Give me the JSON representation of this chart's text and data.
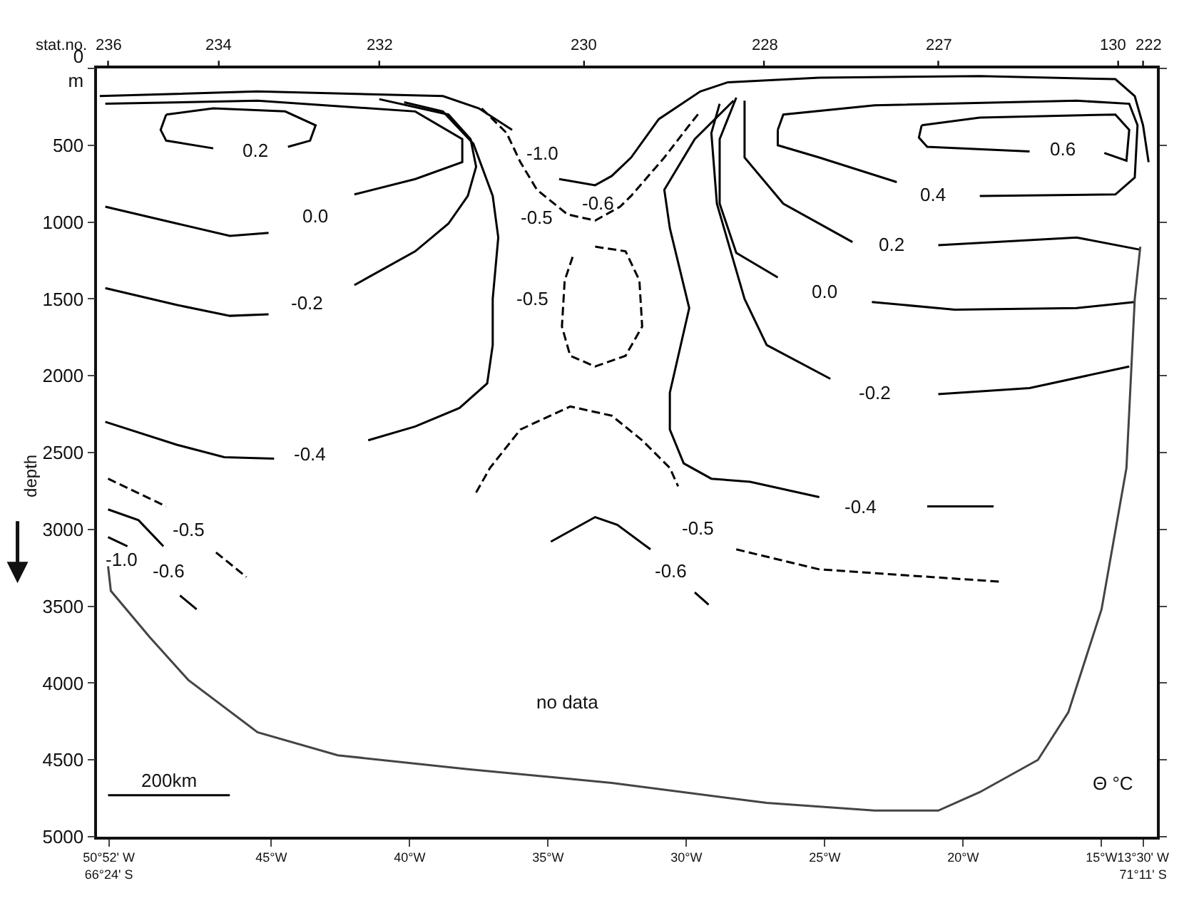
{
  "chart_data": {
    "type": "line",
    "ylabel": "depth",
    "xlim": [
      51.3,
      13.0
    ],
    "ylim": [
      5000,
      0
    ],
    "xticks": [
      {
        "value": 50.87,
        "label": "50°52' W\n66°24' S"
      },
      {
        "value": 45,
        "label": "45°W"
      },
      {
        "value": 40,
        "label": "40°W"
      },
      {
        "value": 35,
        "label": "35°W"
      },
      {
        "value": 30,
        "label": "30°W"
      },
      {
        "value": 25,
        "label": "25°W"
      },
      {
        "value": 20,
        "label": "20°W"
      },
      {
        "value": 15,
        "label": "15°W"
      },
      {
        "value": 13.5,
        "label": "13°30' W\n71°11' S"
      }
    ],
    "yticks": [
      {
        "value": 0,
        "label": "0\nm"
      },
      500,
      1000,
      1500,
      2000,
      2500,
      3000,
      3500,
      4000,
      4500,
      5000
    ],
    "series": [
      {
        "color": "#000000",
        "line_style": "solid",
        "x": [
          51.2,
          45.5,
          38.8,
          37.5,
          36.3,
          35.8,
          34.6,
          33.3,
          32.7,
          32.0,
          31.0,
          29.5,
          28.5,
          25.2,
          19.4,
          14.5,
          13.8,
          13.5,
          13.3
        ],
        "values": [
          180,
          150,
          180,
          260,
          400,
          null,
          720,
          760,
          700,
          580,
          330,
          150,
          90,
          60,
          50,
          70,
          180,
          370,
          610
        ]
      },
      {
        "color": "#000000",
        "line_style": "solid",
        "x": [
          51.0,
          48.4,
          46.5,
          45.1,
          43.7,
          42.0,
          39.8,
          38.1,
          38.1,
          39.8,
          45.5,
          51.0
        ],
        "values": [
          900,
          1010,
          1090,
          1070,
          null,
          820,
          720,
          610,
          460,
          280,
          210,
          230
        ]
      },
      {
        "color": "#000000",
        "line_style": "solid",
        "x": [
          48.8,
          47.1,
          44.5,
          43.4,
          43.6,
          44.4,
          45.8,
          47.1,
          48.8,
          49.0,
          48.8
        ],
        "values": [
          300,
          260,
          280,
          370,
          470,
          510,
          null,
          520,
          470,
          400,
          300
        ]
      },
      {
        "color": "#000000",
        "line_style": "solid",
        "x": [
          51.0,
          48.4,
          46.5,
          45.1,
          43.7,
          42.0,
          39.8,
          38.6,
          37.9,
          37.6,
          37.8,
          38.6,
          41.1
        ],
        "values": [
          1430,
          1540,
          1610,
          1600,
          null,
          1410,
          1190,
          1010,
          830,
          640,
          460,
          300,
          200
        ]
      },
      {
        "color": "#000000",
        "line_style": "solid",
        "x": [
          51.0,
          48.4,
          46.7,
          44.9,
          43.2,
          41.5,
          39.8,
          38.2,
          37.2,
          37.0,
          37.0,
          36.8,
          37.0,
          37.7,
          38.8,
          40.2
        ],
        "values": [
          2300,
          2450,
          2530,
          2540,
          null,
          2420,
          2330,
          2210,
          2050,
          1800,
          1500,
          1100,
          830,
          490,
          280,
          220
        ]
      },
      {
        "color": "#000000",
        "line_style": "dashed",
        "x": [
          37.4,
          36.5,
          36.0,
          35.4,
          34.3,
          33.3,
          32.4,
          32.0,
          30.8,
          29.9,
          29.5
        ],
        "values": [
          260,
          420,
          610,
          790,
          950,
          990,
          900,
          830,
          580,
          370,
          280
        ]
      },
      {
        "color": "#000000",
        "line_style": "dashed",
        "x": [
          33.3,
          32.2,
          31.7,
          31.6,
          32.2,
          33.3,
          34.2,
          34.5,
          34.4,
          34.1
        ],
        "values": [
          1160,
          1190,
          1380,
          1680,
          1870,
          1940,
          1870,
          1680,
          1380,
          1220
        ]
      },
      {
        "color": "#000000",
        "line_style": "solid",
        "x": [
          28.3,
          29.7,
          30.8,
          30.6,
          29.9,
          30.6,
          30.6,
          30.1,
          29.1,
          27.7,
          25.2,
          24.3,
          21.3,
          18.9
        ],
        "values": [
          210,
          460,
          790,
          1040,
          1560,
          2110,
          2350,
          2570,
          2670,
          2690,
          2790,
          null,
          2850,
          2850
        ]
      },
      {
        "color": "#000000",
        "line_style": "solid",
        "x": [
          28.8,
          29.1,
          28.9,
          27.9,
          27.1,
          24.8,
          23.6,
          20.9,
          17.6,
          14.0
        ],
        "values": [
          230,
          420,
          880,
          1500,
          1800,
          2020,
          null,
          2120,
          2080,
          1940
        ]
      },
      {
        "color": "#000000",
        "line_style": "solid",
        "x": [
          28.2,
          28.8,
          28.8,
          28.2,
          26.7,
          25.0,
          23.3,
          20.3,
          15.9,
          13.8
        ],
        "values": [
          190,
          460,
          880,
          1200,
          1360,
          null,
          1520,
          1570,
          1560,
          1520
        ]
      },
      {
        "color": "#000000",
        "line_style": "solid",
        "x": [
          27.9,
          27.9,
          26.5,
          24.0,
          22.4,
          20.9,
          15.9,
          13.6
        ],
        "values": [
          210,
          580,
          880,
          1130,
          null,
          1150,
          1100,
          1180
        ]
      },
      {
        "color": "#000000",
        "line_style": "solid",
        "x": [
          26.7,
          26.5,
          23.2,
          15.9,
          14.0,
          13.7,
          13.8,
          14.5,
          19.4,
          20.9,
          22.4,
          25.2,
          26.7,
          26.7
        ],
        "values": [
          400,
          300,
          240,
          210,
          230,
          370,
          710,
          820,
          830,
          null,
          740,
          580,
          500,
          400
        ]
      },
      {
        "color": "#000000",
        "line_style": "solid",
        "x": [
          21.5,
          19.4,
          14.5,
          14.0,
          14.1,
          14.9,
          16.4,
          17.6,
          21.3,
          21.6,
          21.5
        ],
        "values": [
          370,
          320,
          300,
          400,
          600,
          550,
          null,
          540,
          510,
          450,
          370
        ]
      },
      {
        "color": "#000000",
        "line_style": "dashed",
        "x": [
          37.6,
          37.1,
          36.0,
          34.2,
          32.7,
          31.6,
          30.6,
          30.3,
          29.3,
          28.2,
          25.2,
          18.7
        ],
        "values": [
          2760,
          2600,
          2350,
          2200,
          2260,
          2420,
          2600,
          2720,
          null,
          3130,
          3260,
          3340
        ]
      },
      {
        "color": "#000000",
        "line_style": "solid",
        "x": [
          34.9,
          33.3,
          32.5,
          31.3,
          30.3,
          29.7,
          29.2
        ],
        "values": [
          3080,
          2920,
          2970,
          3130,
          null,
          3410,
          3490
        ]
      },
      {
        "color": "#000000",
        "line_style": "dashed",
        "x": [
          50.9,
          48.8,
          48.0,
          47.0,
          45.9
        ],
        "values": [
          2670,
          2850,
          null,
          3150,
          3310
        ]
      },
      {
        "color": "#000000",
        "line_style": "solid",
        "x": [
          50.9,
          49.8,
          48.9,
          48.7,
          48.3,
          47.7
        ],
        "values": [
          2870,
          2940,
          3110,
          null,
          3430,
          3520
        ]
      },
      {
        "color": "#000000",
        "line_style": "solid",
        "x": [
          50.9,
          50.2
        ],
        "values": [
          3050,
          3110
        ]
      },
      {
        "color": "#444444",
        "line_style": "solid",
        "x": [
          50.9,
          50.8,
          49.4,
          48.0,
          45.5,
          42.6,
          37.9,
          32.7,
          27.1,
          23.2,
          20.9,
          19.4,
          17.3,
          16.2,
          15.0,
          14.1,
          13.8,
          13.6
        ],
        "values": [
          3240,
          3400,
          3700,
          3980,
          4320,
          4470,
          4560,
          4650,
          4780,
          4830,
          4830,
          4710,
          4500,
          4190,
          3520,
          2600,
          1500,
          1160
        ]
      },
      {
        "color": "#000000",
        "line_style": "solid",
        "x": [
          50.9,
          46.5
        ],
        "values": [
          4730,
          4730
        ]
      }
    ],
    "annotations": [
      "0.2",
      "0.0",
      "-0.2",
      "-0.4",
      "-1.0",
      "-0.6",
      "-0.5",
      "-0.5",
      "0.6",
      "0.4",
      "0.2",
      "0.0",
      "-0.2",
      "-0.4",
      "-0.5",
      "-0.6",
      "-0.5",
      "-0.6",
      "-1.0",
      "no data",
      "200km",
      "Θ °C",
      "stat.no.",
      "236",
      "234",
      "232",
      "230",
      "228",
      "227",
      "130",
      "222"
    ]
  }
}
